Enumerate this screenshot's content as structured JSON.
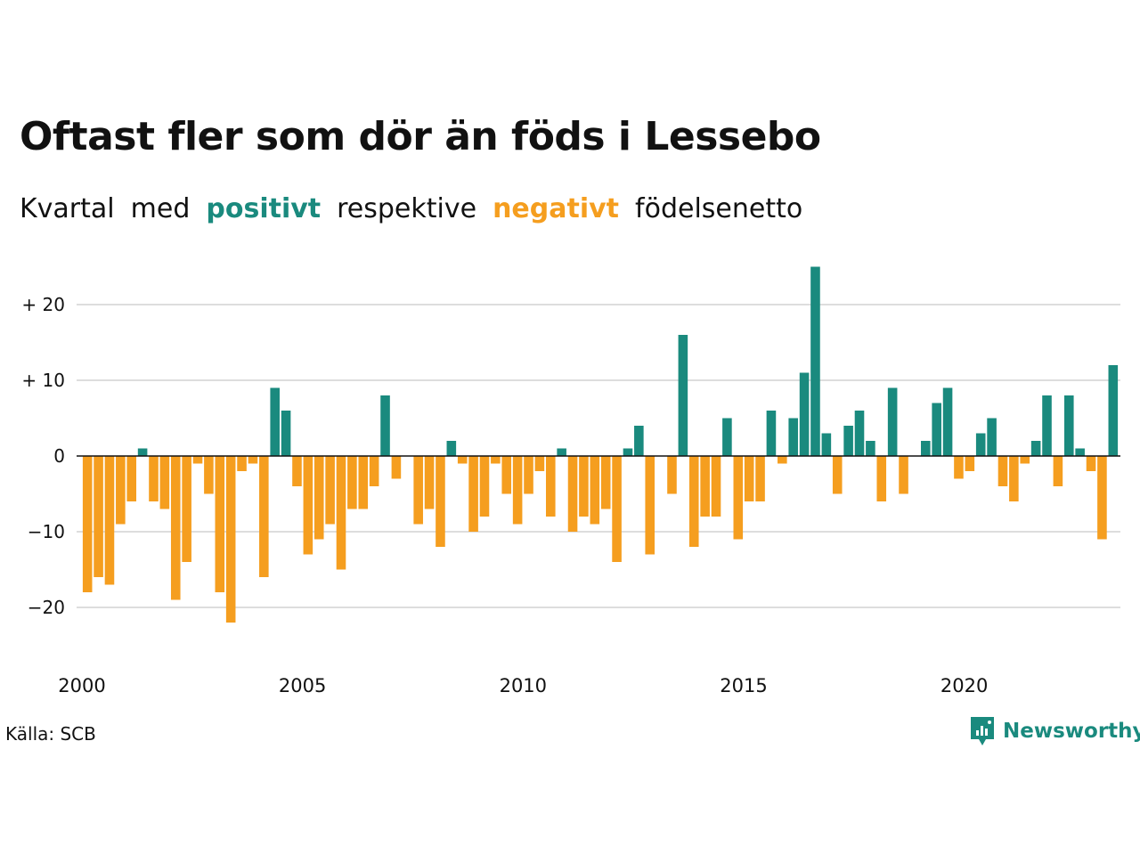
{
  "title": "Oftast fler som dör än föds i Lessebo",
  "subtitle": {
    "part1": "Kvartal",
    "part2": "med",
    "positive_word": "positivt",
    "part3": "respektive",
    "negative_word": "negativt",
    "part4": "födelsenetto"
  },
  "colors": {
    "positive": "#1a8a7e",
    "negative": "#f59e1f",
    "grid": "#dddddd",
    "brand": "#1a8a7e"
  },
  "source": "Källa: SCB",
  "brand": {
    "name": "Newsworthy",
    "icon": "newsworthy-logo-icon"
  },
  "chart_data": {
    "type": "bar",
    "title": "Oftast fler som dör än föds i Lessebo",
    "xlabel": "",
    "ylabel": "",
    "x_start": 2000,
    "periods_per_year": 4,
    "ylim": [
      -26,
      25
    ],
    "yticks": [
      20,
      10,
      0,
      -10,
      -20
    ],
    "ytick_labels": [
      "+ 20",
      "+ 10",
      "0",
      "−10",
      "−20"
    ],
    "xticks": [
      2000,
      2005,
      2010,
      2015,
      2020
    ],
    "xtick_labels": [
      "2000",
      "2005",
      "2010",
      "2015",
      "2020"
    ],
    "grid": true,
    "values": [
      -18,
      -16,
      -17,
      -9,
      -6,
      1,
      -6,
      -7,
      -19,
      -14,
      -1,
      -5,
      -18,
      -22,
      -2,
      -1,
      -16,
      9,
      6,
      -4,
      -13,
      -11,
      -9,
      -15,
      -7,
      -7,
      -4,
      8,
      -3,
      0,
      -9,
      -7,
      -12,
      2,
      -1,
      -10,
      -8,
      -1,
      -5,
      -9,
      -5,
      -2,
      -8,
      1,
      -10,
      -8,
      -9,
      -7,
      -14,
      1,
      4,
      -13,
      0,
      -5,
      16,
      -12,
      -8,
      -8,
      5,
      -11,
      -6,
      -6,
      6,
      -1,
      5,
      11,
      25,
      3,
      -5,
      4,
      6,
      2,
      -6,
      9,
      -5,
      0,
      2,
      7,
      9,
      -3,
      -2,
      3,
      5,
      -4,
      -6,
      -1,
      2,
      8,
      -4,
      8,
      1,
      -2,
      -11,
      12
    ]
  }
}
